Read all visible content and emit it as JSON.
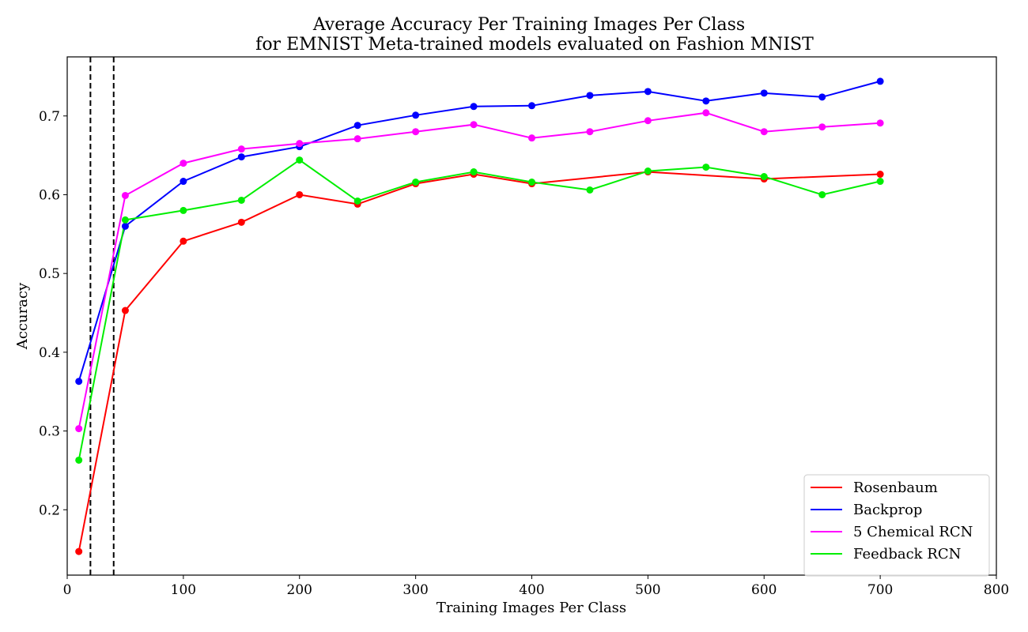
{
  "chart_data": {
    "type": "line",
    "title_line1": "Average Accuracy Per Training Images Per Class",
    "title_line2": "for EMNIST Meta-trained models evaluated on Fashion MNIST",
    "xlabel": "Training Images Per Class",
    "ylabel": "Accuracy",
    "xlim": [
      0,
      800
    ],
    "ylim": [
      0.117,
      0.775
    ],
    "xticks": [
      0,
      100,
      200,
      300,
      400,
      500,
      600,
      700,
      800
    ],
    "yticks": [
      0.2,
      0.3,
      0.4,
      0.5,
      0.6,
      0.7
    ],
    "grid": false,
    "legend_position": "bottom-right",
    "vlines": [
      20,
      40
    ],
    "x": [
      10,
      50,
      100,
      150,
      200,
      250,
      300,
      350,
      400,
      450,
      500,
      550,
      600,
      650,
      700
    ],
    "series": [
      {
        "name": "Rosenbaum",
        "color": "#ff0000",
        "values": [
          0.147,
          0.453,
          0.541,
          0.565,
          0.6,
          0.588,
          0.614,
          0.626,
          0.614,
          null,
          0.629,
          null,
          0.62,
          null,
          0.626
        ]
      },
      {
        "name": "Backprop",
        "color": "#0000ff",
        "values": [
          0.363,
          0.56,
          0.617,
          0.648,
          0.661,
          0.688,
          0.701,
          0.712,
          0.713,
          0.726,
          0.731,
          0.719,
          0.729,
          0.724,
          0.744
        ]
      },
      {
        "name": "5 Chemical RCN",
        "color": "#ff00ff",
        "values": [
          0.303,
          0.599,
          0.64,
          0.658,
          0.665,
          0.671,
          0.68,
          0.689,
          0.672,
          0.68,
          0.694,
          0.704,
          0.68,
          0.686,
          0.691
        ]
      },
      {
        "name": "Feedback RCN",
        "color": "#00ee00",
        "values": [
          0.263,
          0.568,
          0.58,
          0.593,
          0.644,
          0.592,
          0.616,
          0.629,
          0.616,
          0.606,
          0.63,
          0.635,
          0.623,
          0.6,
          0.617
        ]
      }
    ]
  }
}
